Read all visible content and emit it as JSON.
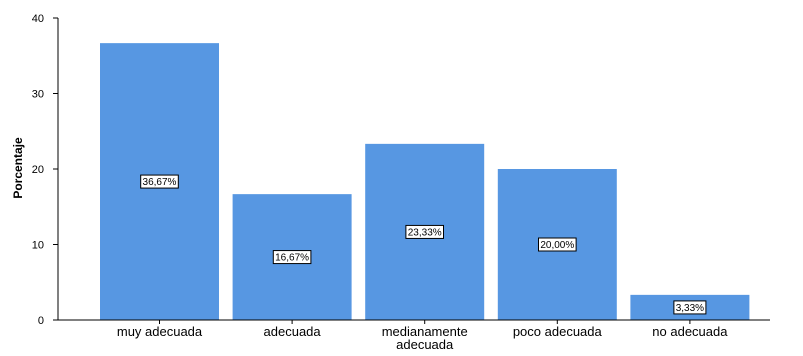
{
  "chart_data": {
    "type": "bar",
    "title": "",
    "xlabel": "",
    "ylabel": "Porcentaje",
    "ylim": [
      0,
      40
    ],
    "yticks": [
      0,
      10,
      20,
      30,
      40
    ],
    "grid": false,
    "bar_color": "#5797e2",
    "categories": [
      "muy adecuada",
      "adecuada",
      "medianamente adecuada",
      "poco adecuada",
      "no adecuada"
    ],
    "category_lines": [
      [
        "muy adecuada"
      ],
      [
        "adecuada"
      ],
      [
        "medianamente",
        "adecuada"
      ],
      [
        "poco adecuada"
      ],
      [
        "no adecuada"
      ]
    ],
    "values": [
      36.67,
      16.67,
      23.33,
      20.0,
      3.33
    ],
    "data_labels": [
      "36,67%",
      "16,67%",
      "23,33%",
      "20,00%",
      "3,33%"
    ]
  }
}
